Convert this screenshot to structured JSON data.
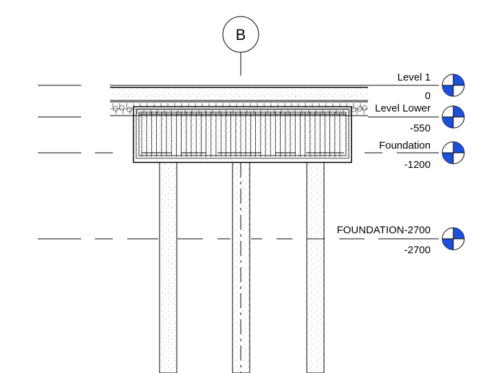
{
  "grid": {
    "label": "B"
  },
  "levels": [
    {
      "id": "level-1",
      "name": "Level 1",
      "elevation": "0"
    },
    {
      "id": "level-lower",
      "name": "Level Lower",
      "elevation": "-550"
    },
    {
      "id": "foundation",
      "name": "Foundation",
      "elevation": "-1200"
    },
    {
      "id": "foundation-2700",
      "name": "FOUNDATION-2700",
      "elevation": "-2700"
    }
  ],
  "colors": {
    "line": "#000000",
    "level_marker": "#1d4fd8",
    "concrete_hatch": "#555555",
    "background": "#ffffff"
  },
  "icons": {
    "level_marker": "level-head-icon",
    "grid_bubble": "grid-bubble-icon"
  }
}
